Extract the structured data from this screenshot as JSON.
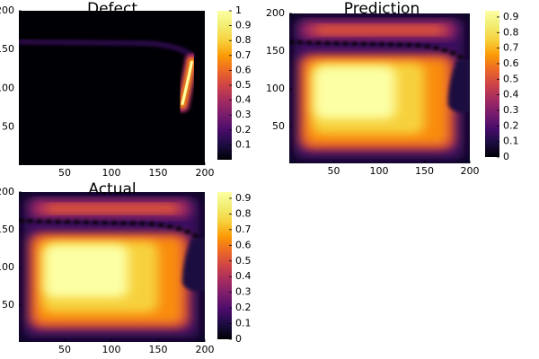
{
  "chart_data": [
    {
      "type": "heatmap",
      "title": "Defect",
      "colormap": "inferno",
      "field": "defect",
      "xlim": [
        1,
        200
      ],
      "ylim": [
        1,
        200
      ],
      "xticks": [
        50,
        100,
        150,
        200
      ],
      "yticks": [
        50,
        100,
        150,
        200
      ],
      "zlim": [
        0,
        1.0
      ],
      "zticks": [
        0.1,
        0.2,
        0.3,
        0.4,
        0.5,
        0.6,
        0.7,
        0.8,
        0.9,
        1.0
      ]
    },
    {
      "type": "heatmap",
      "title": "Prediction",
      "colormap": "inferno",
      "field": "smooth",
      "xlim": [
        1,
        200
      ],
      "ylim": [
        1,
        200
      ],
      "xticks": [
        50,
        100,
        150,
        200
      ],
      "yticks": [
        50,
        100,
        150,
        200
      ],
      "zlim": [
        0,
        0.94
      ],
      "zticks": [
        0,
        0.1,
        0.2,
        0.3,
        0.4,
        0.5,
        0.6,
        0.7,
        0.8,
        0.9
      ]
    },
    {
      "type": "heatmap",
      "title": "Actual",
      "colormap": "inferno",
      "field": "smooth",
      "xlim": [
        1,
        200
      ],
      "ylim": [
        1,
        200
      ],
      "xticks": [
        50,
        100,
        150,
        200
      ],
      "yticks": [
        50,
        100,
        150,
        200
      ],
      "zlim": [
        0,
        0.94
      ],
      "zticks": [
        0,
        0.1,
        0.2,
        0.3,
        0.4,
        0.5,
        0.6,
        0.7,
        0.8,
        0.9
      ]
    }
  ]
}
